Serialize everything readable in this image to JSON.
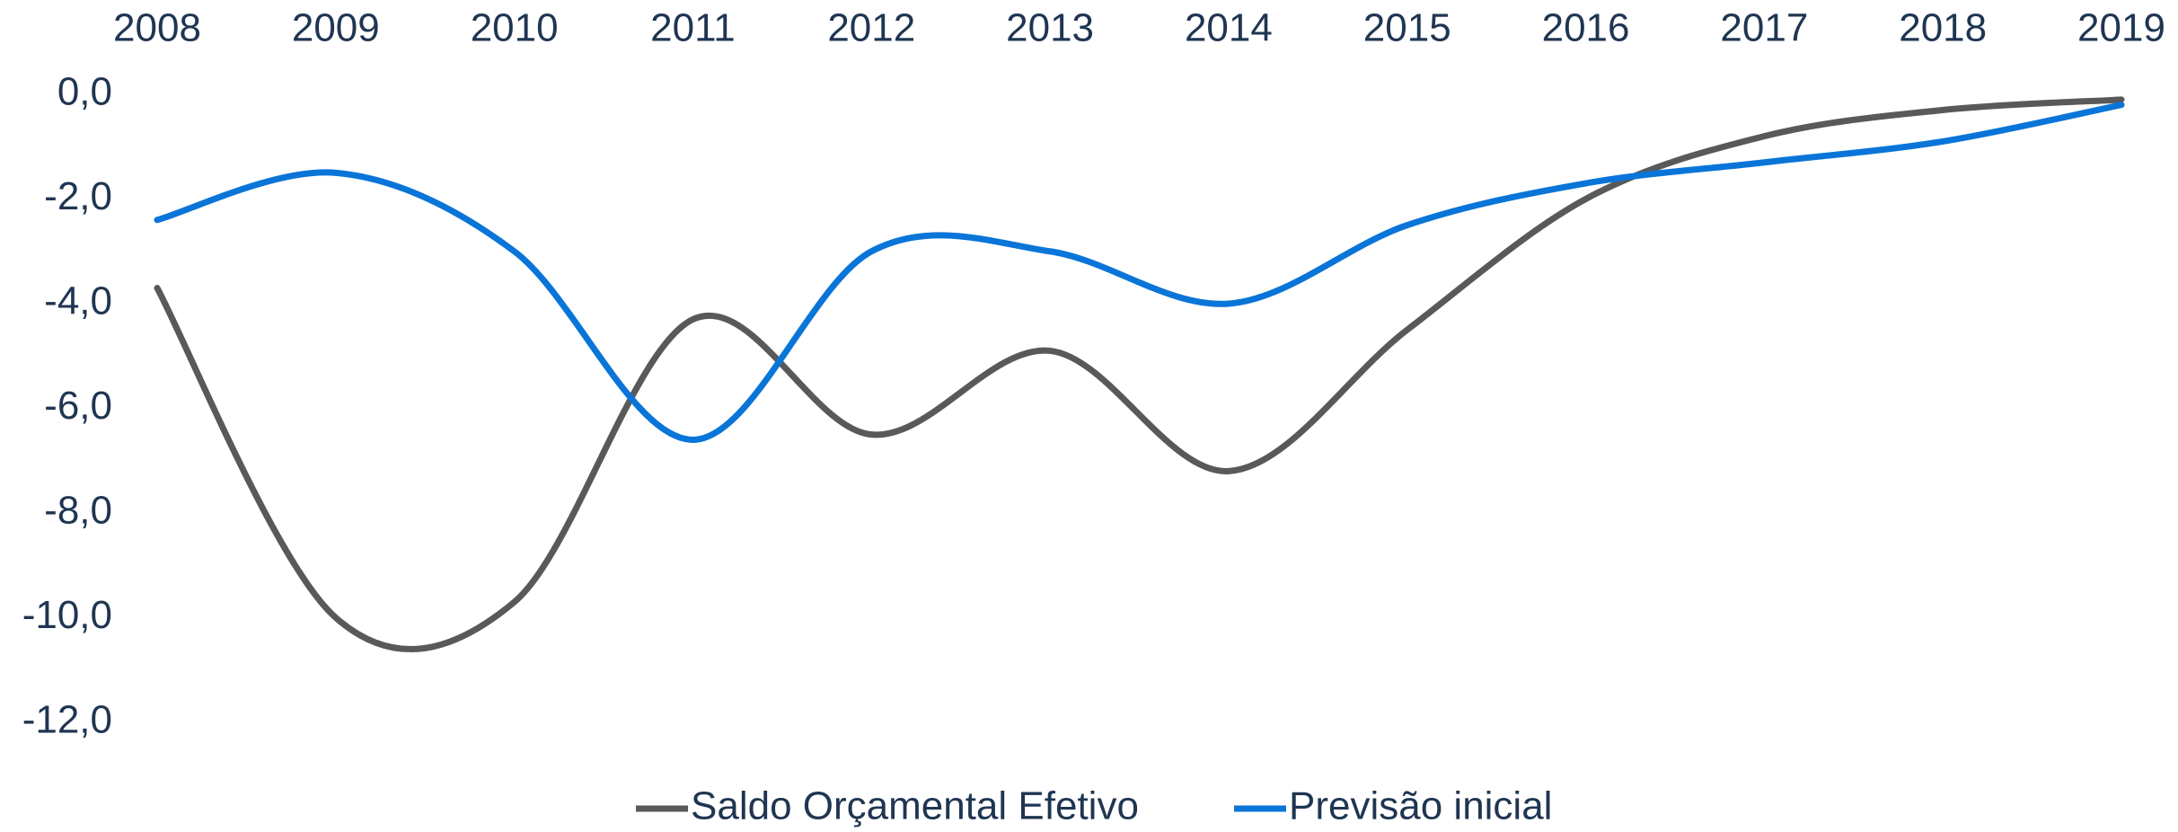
{
  "chart_data": {
    "type": "line",
    "categories": [
      "2008",
      "2009",
      "2010",
      "2011",
      "2012",
      "2013",
      "2014",
      "2015",
      "2016",
      "2017",
      "2018",
      "2019"
    ],
    "series": [
      {
        "name": "Saldo Orçamental Efetivo",
        "color": "#595959",
        "values": [
          -3.7,
          -10.0,
          -9.7,
          -4.3,
          -6.5,
          -4.9,
          -7.2,
          -4.5,
          -2.0,
          -0.8,
          -0.3,
          -0.1
        ]
      },
      {
        "name": "Previsão inicial",
        "color": "#0a75d8",
        "values": [
          -2.4,
          -1.5,
          -3.0,
          -6.6,
          -3.0,
          -3.0,
          -4.0,
          -2.5,
          -1.7,
          -1.3,
          -0.9,
          -0.2
        ]
      }
    ],
    "ylim": [
      -12,
      0
    ],
    "yticks": [
      {
        "value": 0,
        "label": "0,0"
      },
      {
        "value": -2,
        "label": "-2,0"
      },
      {
        "value": -4,
        "label": "-4,0"
      },
      {
        "value": -6,
        "label": "-6,0"
      },
      {
        "value": -8,
        "label": "-8,0"
      },
      {
        "value": -10,
        "label": "-10,0"
      },
      {
        "value": -12,
        "label": "-12,0"
      }
    ],
    "grid": false,
    "legend": "bottom",
    "smooth": true
  }
}
